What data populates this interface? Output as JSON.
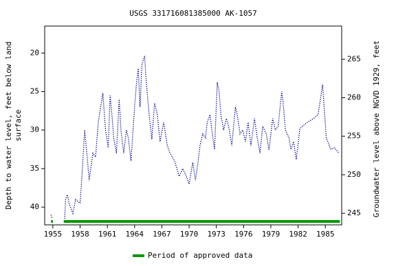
{
  "chart_data": {
    "type": "line",
    "title": "USGS 331716081385000 AK-1057",
    "y_label": [
      "Depth to water level, feet below land",
      "surface"
    ],
    "y2_label": "Groundwater level above NGVD 1929, feet",
    "x": [
      1954.8,
      1954.9,
      1955.5,
      1956.3,
      1956.4,
      1956.6,
      1956.8,
      1957.0,
      1957.2,
      1957.5,
      1958.0,
      1958.2,
      1958.5,
      1958.7,
      1959.0,
      1959.4,
      1959.7,
      1960.0,
      1960.5,
      1960.8,
      1961.1,
      1961.3,
      1961.5,
      1961.7,
      1962.0,
      1962.3,
      1962.5,
      1962.8,
      1963.1,
      1963.3,
      1963.6,
      1964.0,
      1964.2,
      1964.4,
      1964.6,
      1964.8,
      1965.1,
      1965.3,
      1965.6,
      1965.9,
      1966.2,
      1966.5,
      1966.8,
      1967.2,
      1967.4,
      1967.6,
      1967.9,
      1968.4,
      1968.9,
      1969.3,
      1969.7,
      1970.0,
      1970.4,
      1970.7,
      1971.0,
      1971.2,
      1971.5,
      1971.8,
      1972.0,
      1972.3,
      1972.5,
      1972.8,
      1973.1,
      1973.3,
      1973.5,
      1973.8,
      1974.1,
      1974.4,
      1974.7,
      1975.1,
      1975.3,
      1975.6,
      1975.9,
      1976.2,
      1976.5,
      1976.8,
      1977.2,
      1977.5,
      1977.8,
      1978.1,
      1978.3,
      1978.5,
      1978.8,
      1979.2,
      1979.5,
      1979.8,
      1980.2,
      1980.4,
      1980.6,
      1981.0,
      1981.2,
      1981.5,
      1981.8,
      1982.2,
      1983.0,
      1983.7,
      1984.2,
      1984.7,
      1985.1,
      1985.6,
      1986.0,
      1986.5
    ],
    "series": [
      {
        "name": "Depth to water level",
        "color": "#00008b",
        "values": [
          41.0,
          41.5,
          null,
          41.5,
          39.0,
          38.4,
          39.6,
          40.2,
          40.8,
          39.0,
          39.5,
          36.0,
          30.0,
          32.5,
          36.5,
          33.0,
          33.5,
          29.0,
          25.2,
          30.0,
          32.3,
          25.5,
          28.0,
          31.0,
          33.0,
          26.0,
          30.0,
          33.0,
          30.0,
          31.0,
          34.0,
          27.0,
          24.0,
          22.0,
          27.0,
          21.5,
          20.4,
          24.0,
          28.0,
          31.2,
          26.5,
          28.0,
          31.5,
          29.0,
          30.5,
          32.0,
          33.0,
          34.0,
          36.0,
          35.0,
          36.0,
          37.0,
          34.2,
          36.5,
          34.0,
          32.0,
          30.5,
          31.0,
          29.0,
          28.0,
          30.0,
          32.5,
          23.8,
          25.0,
          28.0,
          30.0,
          28.5,
          29.8,
          32.0,
          27.0,
          28.0,
          30.5,
          30.0,
          31.5,
          29.0,
          32.0,
          28.5,
          31.0,
          33.0,
          29.5,
          30.0,
          30.5,
          32.6,
          28.5,
          30.0,
          29.5,
          25.0,
          27.0,
          30.0,
          31.0,
          32.5,
          31.5,
          33.8,
          29.8,
          29.0,
          28.5,
          28.0,
          24.1,
          31.0,
          32.5,
          32.3,
          33.0
        ]
      }
    ],
    "approved_periods": [
      [
        1954.8,
        1955.0
      ],
      [
        1956.2,
        1986.6
      ]
    ],
    "approved_color": "#009900",
    "legend_label": "Period of approved data",
    "xlim": [
      1954.1,
      1986.8
    ],
    "xticks": [
      1955,
      1958,
      1961,
      1964,
      1967,
      1970,
      1973,
      1976,
      1979,
      1982,
      1985
    ],
    "ylim": [
      42.3,
      16.5
    ],
    "yticks": [
      20,
      25,
      30,
      35,
      40
    ],
    "y2lim": [
      243.5,
      269.3
    ],
    "y2ticks": [
      245,
      250,
      255,
      260,
      265
    ],
    "grid": false
  }
}
